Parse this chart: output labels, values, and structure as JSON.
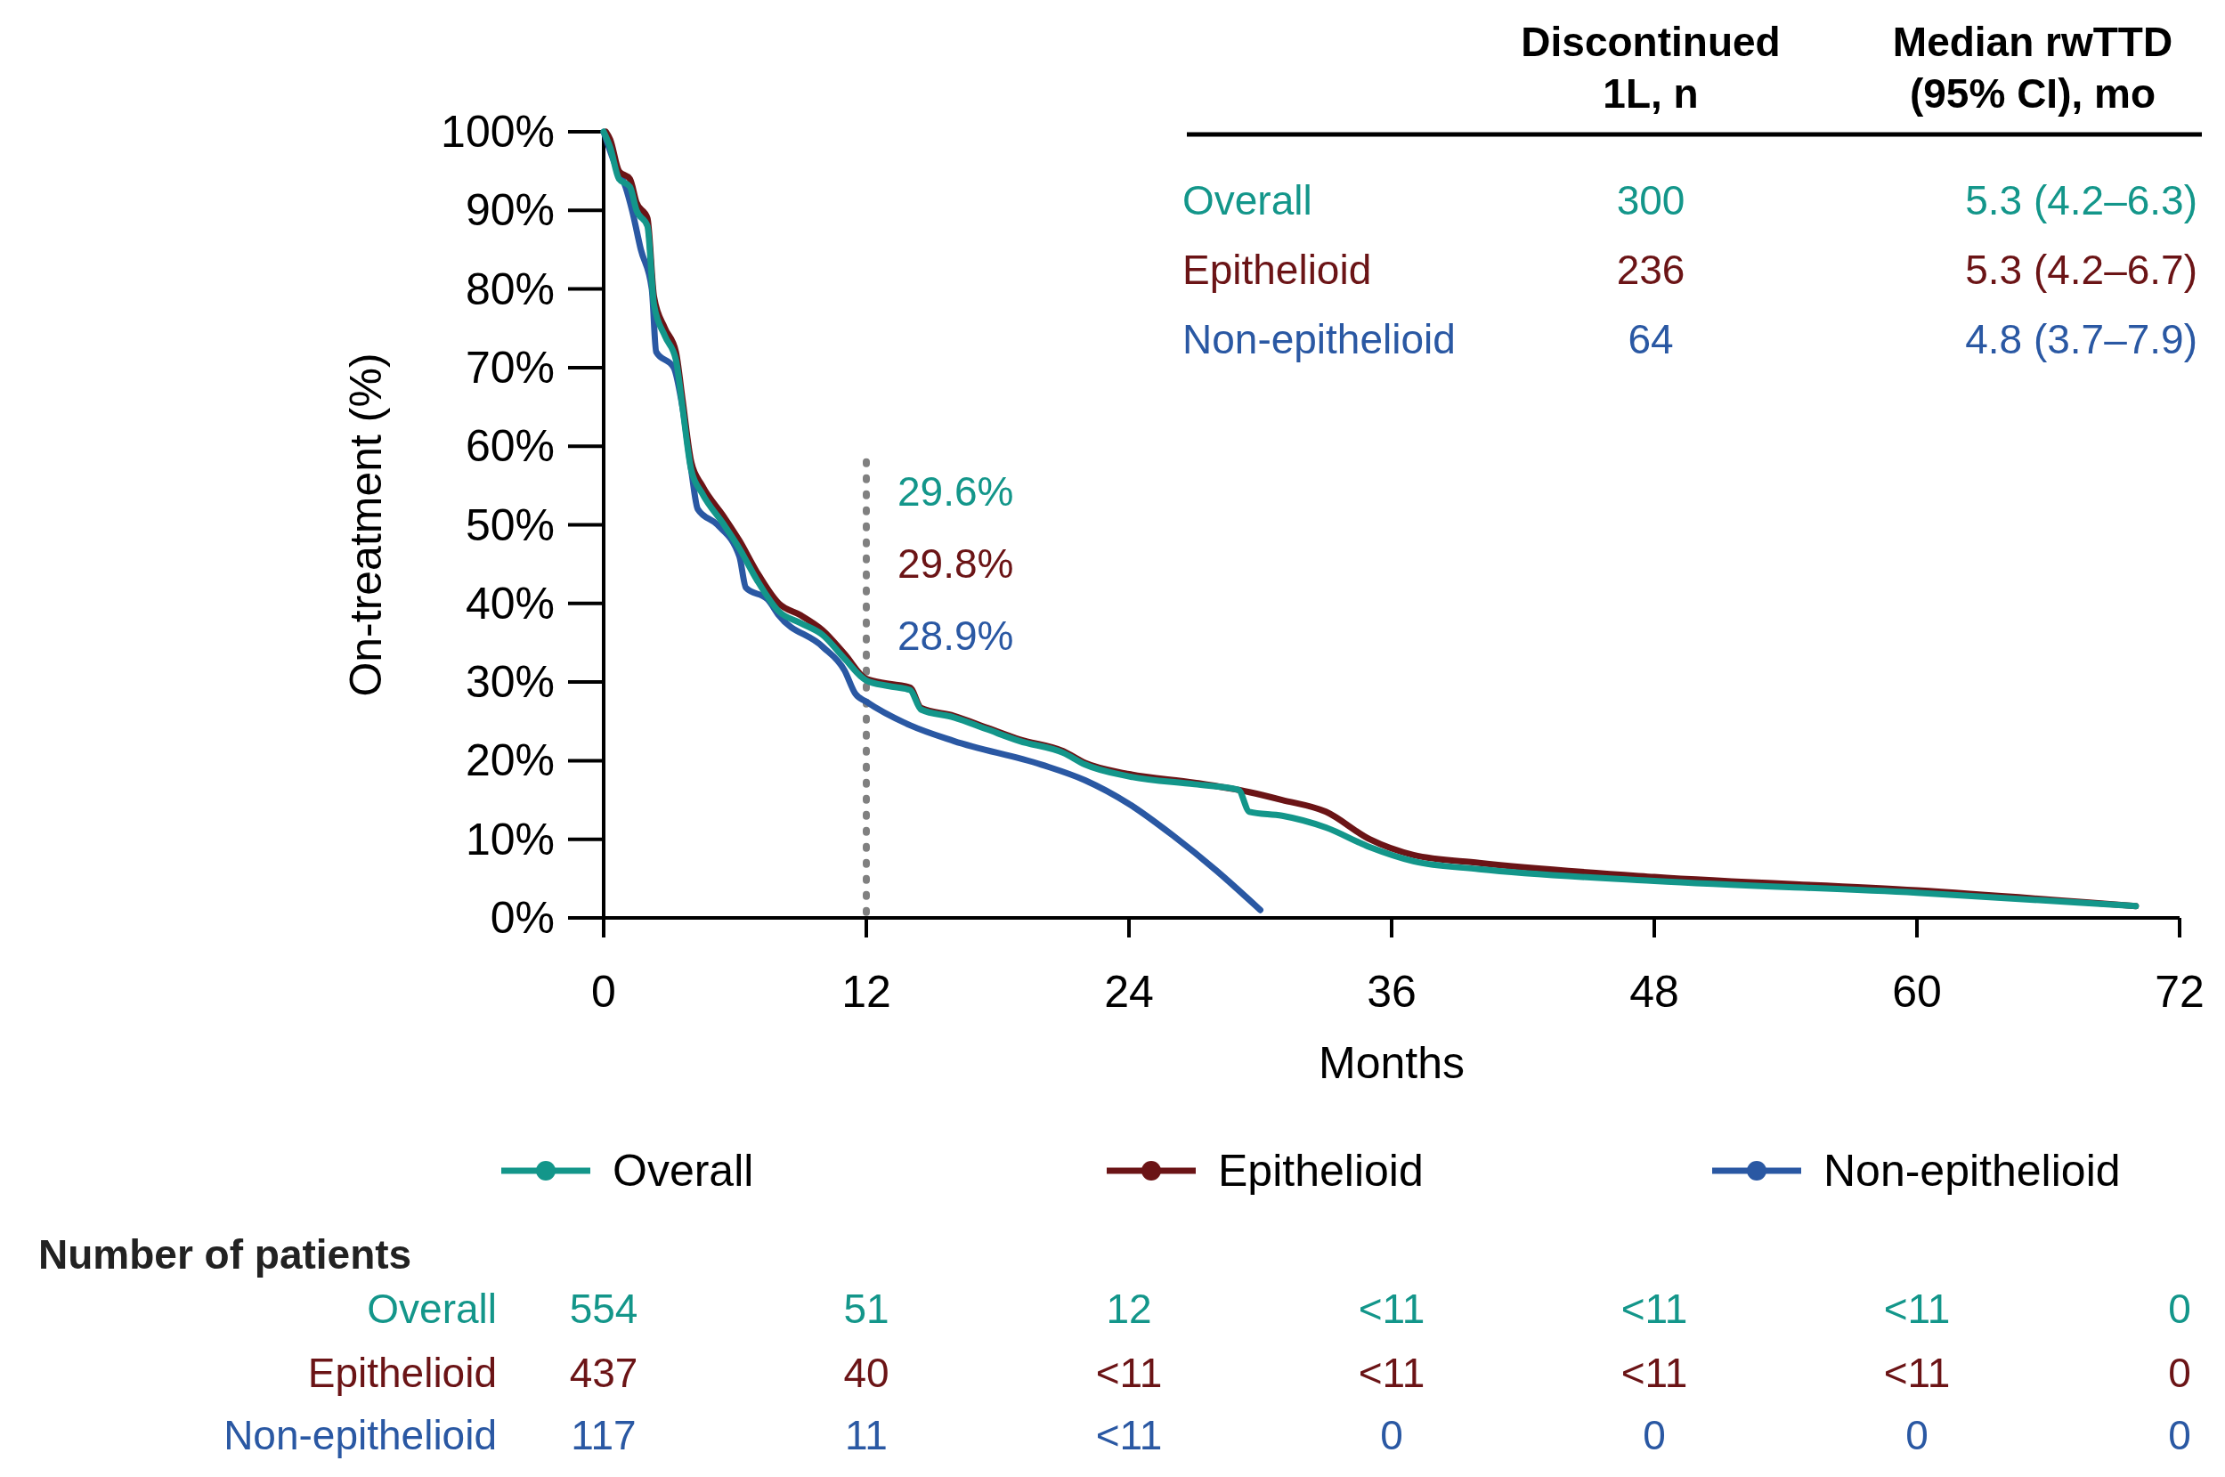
{
  "chart_data": {
    "type": "line",
    "xlabel": "Months",
    "ylabel": "On-treatment (%)",
    "xlim": [
      0,
      72
    ],
    "xticks": [
      0,
      12,
      24,
      36,
      48,
      60,
      72
    ],
    "ylim": [
      0,
      100
    ],
    "yticks": [
      {
        "value": 0,
        "label": "0%"
      },
      {
        "value": 10,
        "label": "10%"
      },
      {
        "value": 20,
        "label": "20%"
      },
      {
        "value": 30,
        "label": "30%"
      },
      {
        "value": 40,
        "label": "40%"
      },
      {
        "value": 50,
        "label": "50%"
      },
      {
        "value": 60,
        "label": "60%"
      },
      {
        "value": 70,
        "label": "70%"
      },
      {
        "value": 80,
        "label": "80%"
      },
      {
        "value": 90,
        "label": "90%"
      },
      {
        "value": 100,
        "label": "100%"
      }
    ],
    "legend": "bottom",
    "grid": false,
    "line_style": "solid",
    "ref_lines": [
      {
        "axis": "x",
        "value": 12,
        "color": "#808080",
        "line_style": "dotted"
      }
    ],
    "series": [
      {
        "name": "Overall",
        "color": "#13968a",
        "x": [
          0,
          0.3,
          0.7,
          1.2,
          1.5,
          2,
          2.3,
          2.8,
          3.3,
          3.6,
          4,
          4.5,
          5.5,
          6.2,
          7,
          8,
          9,
          10,
          11,
          12,
          13,
          14,
          14.5,
          16,
          17.5,
          19,
          21,
          22,
          24,
          27,
          29,
          29.5,
          31,
          33,
          35,
          37,
          40,
          48,
          60,
          70
        ],
        "values": [
          100,
          98,
          94,
          93,
          90,
          88,
          78,
          74,
          71,
          65,
          57,
          54,
          50,
          47,
          43,
          39,
          37.5,
          36,
          33,
          30.2,
          29.5,
          29,
          26.5,
          25.5,
          24,
          22.5,
          21,
          19.5,
          18,
          17,
          16.3,
          13.5,
          13,
          11.5,
          9,
          7.2,
          6.2,
          4.7,
          3.2,
          1.5
        ]
      },
      {
        "name": "Epithelioid",
        "color": "#6b1416",
        "x": [
          0.1,
          0.3,
          0.7,
          1.2,
          1.5,
          2,
          2.3,
          2.8,
          3.3,
          3.6,
          4,
          4.5,
          5.5,
          6.2,
          7,
          8,
          9,
          10,
          11,
          12,
          13,
          14,
          14.5,
          16,
          17.5,
          19,
          21,
          22,
          24,
          27,
          29.5,
          31,
          33,
          35,
          37,
          40,
          48,
          60,
          70
        ],
        "values": [
          100,
          99,
          95,
          94,
          91,
          89,
          79,
          75,
          72,
          66,
          58,
          55,
          51,
          48,
          44,
          40,
          38.5,
          36.6,
          33.6,
          30.4,
          29.8,
          29.3,
          26.7,
          25.7,
          24.2,
          22.7,
          21.2,
          19.7,
          18.3,
          17.2,
          16,
          15,
          13.5,
          10,
          8,
          7,
          5.2,
          3.5,
          1.5
        ]
      },
      {
        "name": "Non-epithelioid",
        "color": "#2a58a3",
        "x": [
          0,
          0.5,
          1,
          1.3,
          1.7,
          2.2,
          2.4,
          3.2,
          3.6,
          4,
          4.3,
          5.2,
          6.2,
          6.5,
          7.5,
          8,
          10,
          11,
          11.5,
          12,
          14,
          16,
          20,
          22,
          24,
          26,
          28,
          30
        ],
        "values": [
          100,
          96,
          93,
          90,
          85,
          80,
          72,
          70,
          65,
          57,
          52,
          50,
          46,
          42,
          40.5,
          38.5,
          34.5,
          31.5,
          28.5,
          27.5,
          24.5,
          22.5,
          19.5,
          17.5,
          14.5,
          10.5,
          6,
          1
        ]
      }
    ],
    "annotations": [
      "Discontinued\n1L, n",
      "Median rwTTD\n(95% CI), mo",
      "300",
      "5.3 (4.2–6.3)",
      "236",
      "5.3 (4.2–6.7)",
      "64",
      "4.8 (3.7–7.9)",
      "29.6%",
      "29.8%",
      "28.9%",
      "Number of patients",
      "554",
      "51",
      "12",
      "<11",
      "<11",
      "<11",
      "0",
      "437",
      "40",
      "<11",
      "<11",
      "<11",
      "<11",
      "0",
      "117",
      "11",
      "<11",
      "0",
      "0",
      "0",
      "0"
    ]
  }
}
